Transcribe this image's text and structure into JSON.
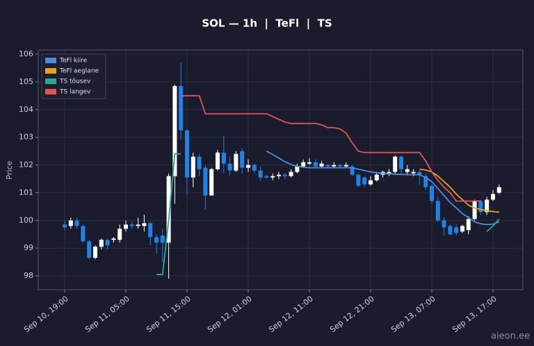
{
  "chart_data": {
    "type": "candlestick",
    "title": "SOL — 1h  |  TeFl  |  TS",
    "y_label": "Price",
    "watermark": "aieon.ee",
    "categories": [
      "Sep 10, 19:00",
      null,
      null,
      null,
      null,
      null,
      null,
      null,
      null,
      null,
      "Sep 11, 05:00",
      null,
      null,
      null,
      null,
      null,
      null,
      null,
      null,
      null,
      "Sep 11, 15:00",
      null,
      null,
      null,
      null,
      null,
      null,
      null,
      null,
      null,
      "Sep 12, 01:00",
      null,
      null,
      null,
      null,
      null,
      null,
      null,
      null,
      null,
      "Sep 12, 11:00",
      null,
      null,
      null,
      null,
      null,
      null,
      null,
      null,
      null,
      "Sep 12, 21:00",
      null,
      null,
      null,
      null,
      null,
      null,
      null,
      null,
      null,
      "Sep 13, 07:00",
      null,
      null,
      null,
      null,
      null,
      null,
      null,
      null,
      null,
      "Sep 13, 17:00",
      null
    ],
    "open": [
      99.85,
      99.8,
      100.0,
      99.8,
      99.25,
      98.65,
      99.05,
      99.3,
      99.3,
      99.3,
      99.7,
      99.85,
      99.8,
      99.8,
      99.9,
      99.4,
      99.45,
      99.2,
      101.6,
      104.85,
      103.25,
      101.55,
      102.3,
      101.9,
      100.9,
      101.85,
      102.45,
      102.05,
      101.8,
      102.5,
      101.9,
      102.0,
      101.8,
      101.6,
      101.55,
      101.6,
      101.65,
      101.6,
      101.75,
      101.95,
      102.05,
      102.1,
      101.95,
      102.0,
      101.95,
      102.0,
      101.95,
      101.95,
      101.65,
      101.55,
      101.3,
      101.45,
      101.65,
      101.7,
      101.75,
      102.3,
      101.75,
      101.7,
      101.75,
      101.6,
      101.25,
      100.7,
      100.0,
      99.8,
      99.75,
      99.6,
      99.65,
      100.05,
      100.7,
      100.3,
      100.75,
      101.0
    ],
    "high": [
      100.0,
      100.1,
      100.1,
      99.85,
      99.3,
      99.1,
      99.35,
      99.35,
      99.4,
      99.85,
      100.0,
      99.95,
      100.1,
      100.2,
      99.95,
      99.5,
      99.7,
      101.7,
      104.9,
      105.7,
      103.3,
      102.45,
      102.4,
      102.0,
      101.9,
      102.55,
      103.05,
      102.3,
      102.5,
      102.6,
      102.2,
      102.05,
      101.95,
      101.65,
      101.7,
      101.75,
      101.7,
      101.85,
      102.05,
      102.2,
      102.25,
      102.2,
      102.15,
      102.05,
      102.1,
      102.05,
      102.1,
      102.0,
      101.7,
      101.6,
      101.6,
      101.75,
      101.8,
      101.85,
      102.35,
      102.35,
      102.0,
      101.85,
      101.8,
      101.7,
      101.3,
      100.85,
      100.1,
      99.85,
      99.85,
      99.85,
      100.15,
      100.75,
      100.75,
      100.85,
      101.1,
      101.3
    ],
    "low": [
      99.65,
      99.7,
      99.7,
      99.2,
      98.6,
      98.6,
      98.95,
      98.95,
      99.2,
      99.2,
      99.6,
      99.7,
      99.7,
      99.6,
      99.1,
      98.8,
      98.5,
      97.9,
      100.6,
      102.9,
      100.9,
      101.2,
      101.6,
      100.4,
      100.9,
      101.8,
      101.7,
      101.6,
      101.75,
      101.7,
      101.75,
      101.7,
      101.45,
      101.5,
      101.45,
      101.5,
      101.5,
      101.55,
      101.7,
      101.9,
      102.0,
      101.9,
      101.9,
      101.9,
      101.9,
      101.9,
      101.9,
      101.6,
      101.2,
      101.2,
      101.25,
      101.4,
      101.55,
      101.6,
      101.7,
      101.7,
      101.65,
      101.6,
      101.3,
      101.1,
      100.6,
      99.95,
      99.45,
      99.45,
      99.45,
      99.55,
      99.5,
      100.0,
      100.2,
      100.2,
      100.7,
      100.95
    ],
    "close": [
      99.75,
      100.0,
      99.8,
      99.25,
      98.65,
      99.05,
      99.3,
      99.1,
      99.35,
      99.7,
      99.85,
      99.8,
      99.85,
      99.9,
      99.4,
      99.2,
      99.2,
      101.6,
      104.85,
      103.25,
      101.55,
      102.3,
      101.85,
      100.9,
      101.85,
      102.45,
      102.05,
      101.8,
      102.4,
      101.9,
      102.0,
      101.8,
      101.55,
      101.55,
      101.6,
      101.65,
      101.6,
      101.75,
      101.95,
      102.1,
      102.1,
      101.95,
      102.05,
      101.95,
      102.0,
      101.95,
      102.0,
      101.65,
      101.25,
      101.3,
      101.45,
      101.65,
      101.75,
      101.75,
      102.3,
      101.85,
      101.85,
      101.75,
      101.65,
      101.2,
      100.7,
      100.0,
      99.75,
      99.5,
      99.55,
      99.8,
      100.05,
      100.7,
      100.3,
      100.75,
      100.95,
      101.2
    ],
    "up_color": "#ffffff",
    "down_color": "#1f83e6",
    "series": [
      {
        "name": "TeFl kiire",
        "color": "#4a8fde",
        "values": [
          null,
          null,
          null,
          null,
          null,
          null,
          null,
          null,
          null,
          null,
          null,
          null,
          null,
          null,
          null,
          null,
          null,
          null,
          null,
          null,
          null,
          null,
          null,
          null,
          null,
          null,
          null,
          null,
          null,
          null,
          null,
          null,
          null,
          102.5,
          102.38,
          102.25,
          102.12,
          102.02,
          101.95,
          101.92,
          101.9,
          101.9,
          101.9,
          101.9,
          101.9,
          101.9,
          101.9,
          101.9,
          101.85,
          101.8,
          101.75,
          101.72,
          101.7,
          101.68,
          101.67,
          101.66,
          101.65,
          101.65,
          101.65,
          101.55,
          101.4,
          101.15,
          100.9,
          100.65,
          100.45,
          100.25,
          100.1,
          99.95,
          99.88,
          99.85,
          99.87,
          99.95
        ]
      },
      {
        "name": "TeFl aeglane",
        "color": "#e8a317",
        "values": [
          null,
          null,
          null,
          null,
          null,
          null,
          null,
          null,
          null,
          null,
          null,
          null,
          null,
          null,
          null,
          null,
          null,
          null,
          null,
          null,
          null,
          null,
          null,
          null,
          null,
          null,
          null,
          null,
          null,
          null,
          null,
          null,
          null,
          null,
          null,
          null,
          null,
          null,
          null,
          null,
          null,
          null,
          null,
          null,
          null,
          null,
          null,
          null,
          null,
          null,
          null,
          null,
          null,
          null,
          null,
          null,
          null,
          null,
          101.85,
          101.82,
          101.75,
          101.6,
          101.4,
          101.2,
          100.95,
          100.75,
          100.55,
          100.45,
          100.4,
          100.35,
          100.32,
          100.3
        ]
      },
      {
        "name": "TS tõusev",
        "color": "#2aa891",
        "values": [
          null,
          null,
          null,
          null,
          null,
          null,
          null,
          null,
          null,
          null,
          null,
          null,
          null,
          null,
          null,
          98.05,
          98.05,
          100.0,
          102.4,
          102.4,
          null,
          null,
          null,
          null,
          null,
          null,
          null,
          null,
          null,
          null,
          null,
          null,
          null,
          null,
          null,
          null,
          null,
          null,
          null,
          null,
          null,
          null,
          null,
          null,
          null,
          null,
          null,
          null,
          null,
          null,
          null,
          null,
          null,
          null,
          null,
          null,
          null,
          null,
          null,
          null,
          null,
          null,
          null,
          null,
          null,
          null,
          null,
          null,
          null,
          99.6,
          99.8,
          100.05
        ]
      },
      {
        "name": "TS langev",
        "color": "#e05555",
        "values": [
          null,
          null,
          null,
          null,
          null,
          null,
          null,
          null,
          null,
          null,
          null,
          null,
          null,
          null,
          null,
          null,
          null,
          null,
          null,
          104.5,
          104.5,
          104.5,
          104.5,
          103.85,
          103.85,
          103.85,
          103.85,
          103.85,
          103.85,
          103.85,
          103.85,
          103.85,
          103.85,
          103.85,
          103.75,
          103.65,
          103.55,
          103.5,
          103.5,
          103.5,
          103.5,
          103.5,
          103.45,
          103.35,
          103.35,
          103.3,
          103.15,
          102.8,
          102.5,
          102.45,
          102.45,
          102.45,
          102.45,
          102.45,
          102.45,
          102.45,
          102.45,
          102.45,
          102.45,
          102.15,
          101.75,
          101.45,
          101.2,
          101.0,
          100.7,
          100.7,
          100.7,
          100.7,
          100.7,
          null,
          null,
          null
        ]
      }
    ],
    "ylim": [
      97.5,
      106.15
    ],
    "yticks": [
      98,
      99,
      100,
      101,
      102,
      103,
      104,
      105,
      106
    ],
    "grid": true,
    "legend": "upper left"
  }
}
